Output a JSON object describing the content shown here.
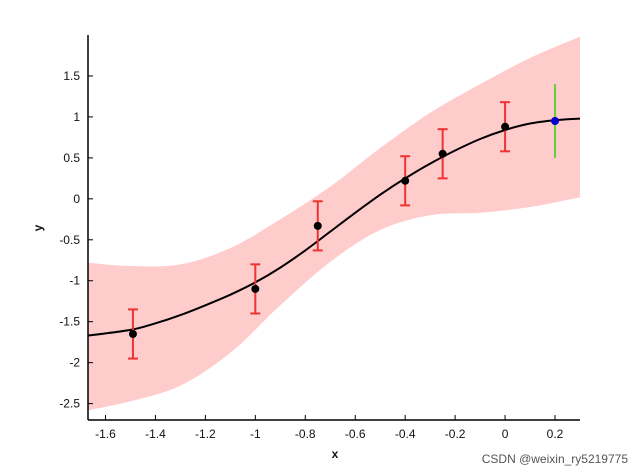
{
  "chart_data": {
    "type": "line",
    "title": "",
    "xlabel": "x",
    "ylabel": "y",
    "xlim": [
      -1.67,
      0.3
    ],
    "ylim": [
      -2.7,
      2.0
    ],
    "xticks": [
      -1.6,
      -1.4,
      -1.2,
      -1,
      -0.8,
      -0.6,
      -0.4,
      -0.2,
      0,
      0.2
    ],
    "xtick_labels": [
      "-1.6",
      "-1.4",
      "-1.2",
      "-1",
      "-0.8",
      "-0.6",
      "-0.4",
      "-0.2",
      "0",
      "0.2"
    ],
    "yticks": [
      -2.5,
      -2,
      -1.5,
      -1,
      -0.5,
      0,
      0.5,
      1,
      1.5
    ],
    "ytick_labels": [
      "-2.5",
      "-2",
      "-1.5",
      "-1",
      "-0.5",
      "0",
      "0.5",
      "1",
      "1.5"
    ],
    "grid": false,
    "legend": "none",
    "colors": {
      "band": "#ffcccc",
      "mean_line": "#000000",
      "observation": "#000000",
      "error_bar": "#ee3333",
      "test_point": "#0000cc",
      "test_error_bar": "#66cc33",
      "axes": "#000000"
    },
    "confidence_band": {
      "x": [
        -1.67,
        -1.5,
        -1.3,
        -1.1,
        -0.9,
        -0.7,
        -0.5,
        -0.3,
        -0.1,
        0.1,
        0.3
      ],
      "upper": [
        -0.78,
        -0.82,
        -0.8,
        -0.6,
        -0.25,
        0.15,
        0.62,
        1.05,
        1.4,
        1.72,
        1.98
      ],
      "lower": [
        -2.58,
        -2.47,
        -2.28,
        -1.88,
        -1.3,
        -0.77,
        -0.38,
        -0.2,
        -0.17,
        -0.1,
        0.02
      ]
    },
    "mean_curve": {
      "x": [
        -1.67,
        -1.5,
        -1.4,
        -1.3,
        -1.2,
        -1.1,
        -1.0,
        -0.9,
        -0.8,
        -0.7,
        -0.6,
        -0.5,
        -0.4,
        -0.3,
        -0.2,
        -0.1,
        0.0,
        0.1,
        0.2,
        0.3
      ],
      "y": [
        -1.67,
        -1.6,
        -1.52,
        -1.42,
        -1.3,
        -1.17,
        -1.02,
        -0.84,
        -0.63,
        -0.4,
        -0.17,
        0.05,
        0.25,
        0.43,
        0.59,
        0.73,
        0.84,
        0.92,
        0.96,
        0.98
      ]
    },
    "observations": {
      "x": [
        -1.49,
        -1.0,
        -0.75,
        -0.4,
        -0.25,
        0.0
      ],
      "y": [
        -1.65,
        -1.1,
        -0.33,
        0.22,
        0.55,
        0.88
      ],
      "error": [
        0.3,
        0.3,
        0.3,
        0.3,
        0.3,
        0.3
      ]
    },
    "test_point": {
      "x": 0.2,
      "y": 0.95,
      "error": 0.45
    }
  },
  "watermark": "CSDN @weixin_ry5219775"
}
